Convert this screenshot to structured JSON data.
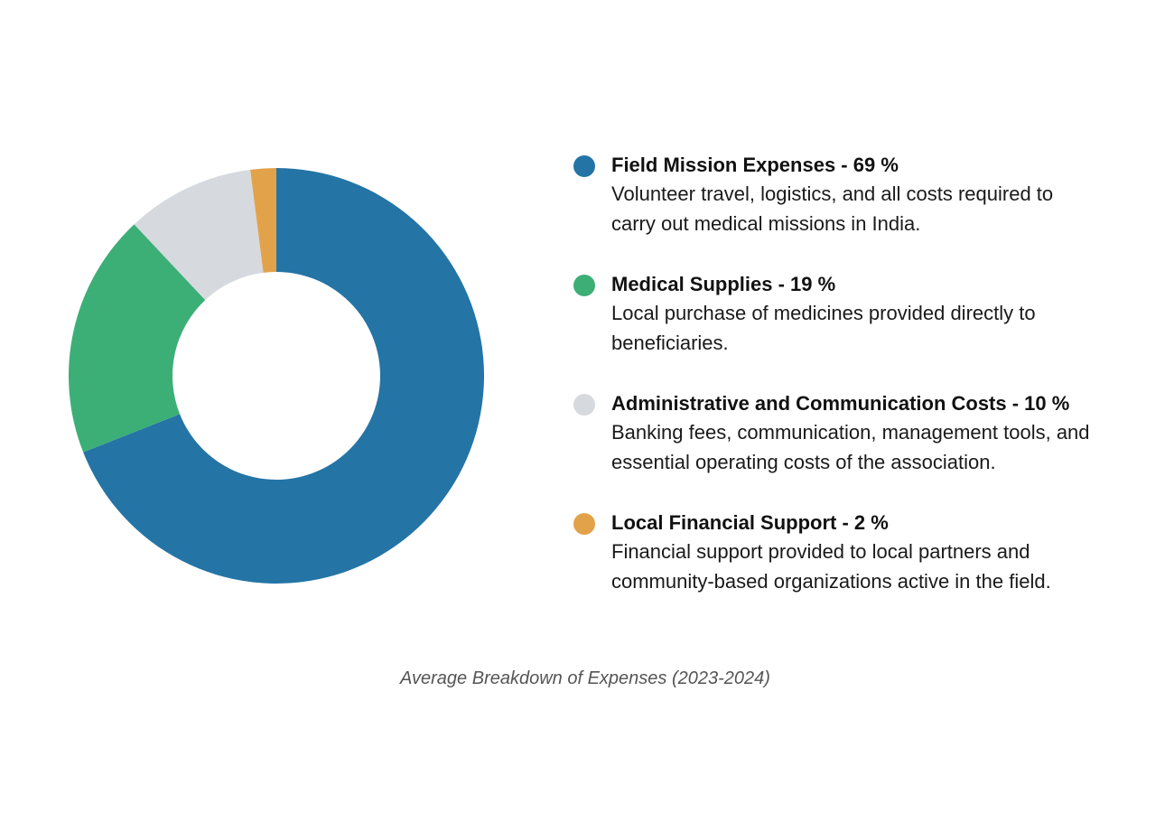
{
  "chart_data": {
    "type": "pie",
    "donut": true,
    "caption": "Average Breakdown of Expenses (2023-2024)",
    "slices": [
      {
        "label": "Field Mission Expenses - 69 %",
        "value": 69,
        "color": "#2474a6",
        "description": "Volunteer travel, logistics, and all costs required to\ncarry out medical missions in India."
      },
      {
        "label": "Medical Supplies - 19 %",
        "value": 19,
        "color": "#3caf77",
        "description": "Local purchase of medicines provided directly to\nbeneficiaries."
      },
      {
        "label": "Administrative and Communication Costs - 10 %",
        "value": 10,
        "color": "#d6d9de",
        "description": "Banking fees, communication, management tools, and\nessential operating costs of the association."
      },
      {
        "label": "Local Financial Support - 2 %",
        "value": 2,
        "color": "#e2a24a",
        "description": "Financial support provided to local partners and\ncommunity-based organizations active in the field."
      }
    ]
  }
}
